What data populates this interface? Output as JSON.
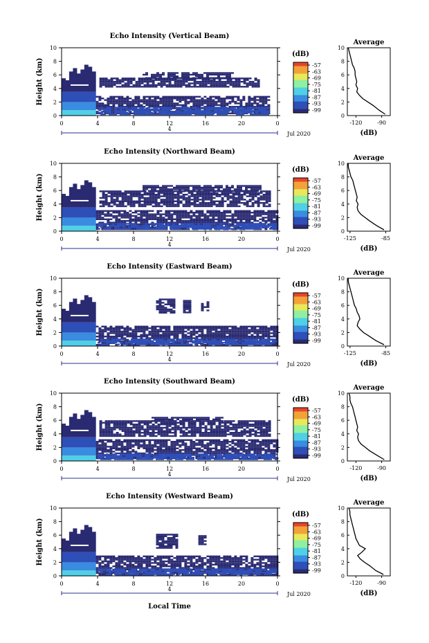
{
  "chart_data": {
    "type": "heatmap",
    "x_label": "Local Time",
    "y_label": "Height (km)",
    "colorbar_label": "(dB)",
    "colorbar_ticks": [
      "-57",
      "-63",
      "-69",
      "-75",
      "-81",
      "-87",
      "-93",
      "-99"
    ],
    "colors": [
      "#2a2a72",
      "#2e4fb8",
      "#3a8ce0",
      "#4fd0e6",
      "#8ef0a0",
      "#e8e85a",
      "#f3a238",
      "#e8452a"
    ],
    "date_label": "Jul 2020",
    "x_ticks": [
      "0",
      "4",
      "8",
      "12",
      "16",
      "20",
      "0"
    ],
    "x_range": [
      0,
      24
    ],
    "x_sub_label": "4",
    "y_ticks": [
      "0",
      "2",
      "4",
      "6",
      "8",
      "10"
    ],
    "y_range": [
      0,
      10
    ],
    "profile_title": "Average",
    "profile_xlabel": "(dB)",
    "panels": [
      {
        "title": "Echo Intensity (Vertical Beam)",
        "profile_xticks": [
          "-120",
          "-90"
        ],
        "profile_xrange": [
          -130,
          -80
        ],
        "profile": {
          "height": [
            0.2,
            0.8,
            1.5,
            2.0,
            2.5,
            3.0,
            3.5,
            4.0,
            4.5,
            5.0,
            5.5,
            6.0,
            6.5,
            7.0,
            7.5,
            8.0,
            8.5,
            9.0,
            9.5,
            10.0
          ],
          "db": [
            -86,
            -93,
            -100,
            -106,
            -112,
            -116,
            -119,
            -118,
            -120,
            -119,
            -120,
            -121,
            -121,
            -122,
            -124,
            -125,
            -126,
            -127,
            -128,
            -129
          ]
        },
        "clouds": [
          {
            "t0": 3.8,
            "t1": 23,
            "h0": 0.3,
            "h1": 2.9,
            "c": 0
          },
          {
            "t0": 4.2,
            "t1": 22,
            "h0": 4.2,
            "h1": 5.6,
            "c": 0
          },
          {
            "t0": 9,
            "t1": 19,
            "h0": 5.6,
            "h1": 6.4,
            "c": 0
          },
          {
            "t0": 4,
            "t1": 23,
            "h0": 0.3,
            "h1": 1.3,
            "c": 1
          }
        ]
      },
      {
        "title": "Echo Intensity (Northward Beam)",
        "profile_xticks": [
          "-125",
          "-85"
        ],
        "profile_xrange": [
          -128,
          -80
        ],
        "profile": {
          "height": [
            0.2,
            0.8,
            1.5,
            2.0,
            2.5,
            3.0,
            3.5,
            4.0,
            4.5,
            5.0,
            5.5,
            6.0,
            6.5,
            7.0,
            7.5,
            8.0,
            8.5,
            9.0,
            9.5,
            10.0
          ],
          "db": [
            -87,
            -95,
            -103,
            -108,
            -113,
            -116,
            -117,
            -116,
            -118,
            -117,
            -118,
            -119,
            -120,
            -121,
            -122,
            -124,
            -125,
            -126,
            -127,
            -127
          ]
        },
        "clouds": [
          {
            "t0": 3.8,
            "t1": 24,
            "h0": 0.3,
            "h1": 3.1,
            "c": 0
          },
          {
            "t0": 4.2,
            "t1": 23,
            "h0": 3.6,
            "h1": 6.0,
            "c": 0
          },
          {
            "t0": 9,
            "t1": 22,
            "h0": 6.0,
            "h1": 6.8,
            "c": 0
          },
          {
            "t0": 4,
            "t1": 24,
            "h0": 0.3,
            "h1": 1.2,
            "c": 1
          }
        ]
      },
      {
        "title": "Echo Intensity (Eastward Beam)",
        "profile_xticks": [
          "-125",
          "-85"
        ],
        "profile_xrange": [
          -128,
          -80
        ],
        "profile": {
          "height": [
            0.2,
            0.8,
            1.5,
            2.0,
            2.5,
            3.0,
            3.5,
            4.0,
            4.5,
            5.0,
            5.5,
            6.0,
            6.5,
            7.0,
            7.5,
            8.0,
            8.5,
            9.0,
            9.5,
            10.0
          ],
          "db": [
            -87,
            -96,
            -104,
            -110,
            -114,
            -117,
            -116,
            -114,
            -115,
            -117,
            -118,
            -120,
            -121,
            -122,
            -123,
            -124,
            -125,
            -126,
            -127,
            -127
          ]
        },
        "clouds": [
          {
            "t0": 3.8,
            "t1": 24,
            "h0": 0.3,
            "h1": 3.0,
            "c": 0
          },
          {
            "t0": 10.5,
            "t1": 12.5,
            "h0": 4.8,
            "h1": 7.0,
            "c": 0
          },
          {
            "t0": 13.5,
            "t1": 14.3,
            "h0": 5.0,
            "h1": 6.8,
            "c": 0
          },
          {
            "t0": 15.5,
            "t1": 16.2,
            "h0": 5.2,
            "h1": 6.6,
            "c": 0
          },
          {
            "t0": 4,
            "t1": 24,
            "h0": 0.3,
            "h1": 1.1,
            "c": 1
          }
        ]
      },
      {
        "title": "Echo Intensity (Southward Beam)",
        "profile_xticks": [
          "-120",
          "-90"
        ],
        "profile_xrange": [
          -130,
          -80
        ],
        "profile": {
          "height": [
            0.2,
            0.8,
            1.5,
            2.0,
            2.5,
            3.0,
            3.5,
            4.0,
            4.5,
            5.0,
            5.5,
            6.0,
            6.5,
            7.0,
            7.5,
            8.0,
            8.5,
            9.0,
            9.5,
            10.0
          ],
          "db": [
            -87,
            -95,
            -104,
            -109,
            -114,
            -117,
            -118,
            -117,
            -119,
            -118,
            -119,
            -120,
            -121,
            -122,
            -123,
            -124,
            -126,
            -127,
            -127,
            -128
          ]
        },
        "clouds": [
          {
            "t0": 3.8,
            "t1": 24,
            "h0": 0.3,
            "h1": 3.2,
            "c": 0
          },
          {
            "t0": 4.2,
            "t1": 23,
            "h0": 3.7,
            "h1": 6.0,
            "c": 0
          },
          {
            "t0": 10,
            "t1": 18,
            "h0": 6.0,
            "h1": 6.5,
            "c": 0
          },
          {
            "t0": 4,
            "t1": 24,
            "h0": 0.3,
            "h1": 1.1,
            "c": 1
          }
        ]
      },
      {
        "title": "Echo Intensity (Westward Beam)",
        "profile_xticks": [
          "-120",
          "-90"
        ],
        "profile_xrange": [
          -130,
          -80
        ],
        "profile": {
          "height": [
            0.2,
            0.8,
            1.5,
            2.0,
            2.5,
            3.0,
            3.5,
            4.0,
            4.5,
            5.0,
            5.5,
            6.0,
            6.5,
            7.0,
            7.5,
            8.0,
            8.5,
            9.0,
            9.5,
            10.0
          ],
          "db": [
            -88,
            -97,
            -104,
            -110,
            -115,
            -118,
            -113,
            -109,
            -116,
            -118,
            -120,
            -121,
            -122,
            -123,
            -124,
            -125,
            -126,
            -127,
            -127,
            -128
          ]
        },
        "clouds": [
          {
            "t0": 3.8,
            "t1": 24,
            "h0": 0.3,
            "h1": 3.0,
            "c": 0
          },
          {
            "t0": 10.5,
            "t1": 12.8,
            "h0": 4.0,
            "h1": 6.2,
            "c": 0
          },
          {
            "t0": 15.2,
            "t1": 16.0,
            "h0": 4.6,
            "h1": 6.0,
            "c": 0
          },
          {
            "t0": 4,
            "t1": 24,
            "h0": 0.3,
            "h1": 1.1,
            "c": 1
          }
        ]
      }
    ]
  }
}
